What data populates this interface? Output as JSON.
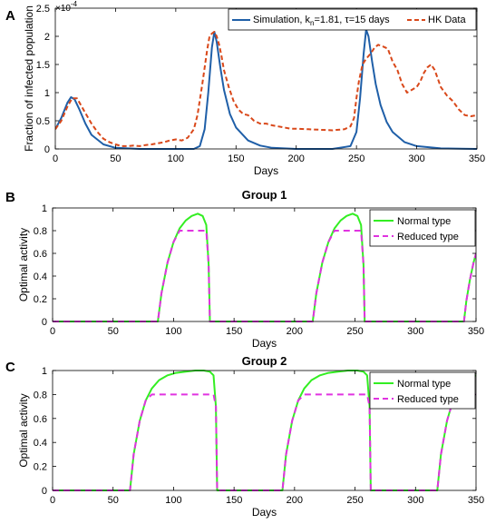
{
  "chart_data": [
    {
      "panel": "A",
      "type": "line",
      "title": "",
      "xlabel": "Days",
      "ylabel": "Fraction of infected population",
      "y_exponent_label": "×10",
      "y_exponent_power": "-4",
      "xlim": [
        0,
        350
      ],
      "ylim": [
        0,
        2.5
      ],
      "xticks": [
        "0",
        "50",
        "100",
        "150",
        "200",
        "250",
        "300",
        "350"
      ],
      "yticks": [
        "0",
        "0.5",
        "1",
        "1.5",
        "2",
        "2.5"
      ],
      "legend": {
        "position": "top-right",
        "sim_prefix": "Simulation, k",
        "sim_sub": "n",
        "sim_suffix": "=1.81, τ=15 days",
        "data_label": "HK Data"
      },
      "series": [
        {
          "name": "Simulation, kn=1.81, τ=15 days",
          "color": "#1f5fa8",
          "style": "solid",
          "x": [
            0,
            5,
            10,
            13,
            16,
            20,
            25,
            30,
            40,
            50,
            70,
            100,
            115,
            120,
            124,
            127,
            130,
            132,
            134,
            137,
            140,
            145,
            150,
            160,
            170,
            180,
            200,
            230,
            245,
            250,
            253,
            256,
            258,
            260,
            263,
            266,
            270,
            275,
            280,
            290,
            300,
            320,
            350
          ],
          "y": [
            0.35,
            0.55,
            0.82,
            0.92,
            0.88,
            0.7,
            0.45,
            0.25,
            0.08,
            0.02,
            0.0,
            0.0,
            0.0,
            0.05,
            0.35,
            1.0,
            1.8,
            2.08,
            1.9,
            1.45,
            1.05,
            0.62,
            0.38,
            0.15,
            0.06,
            0.02,
            0.0,
            0.0,
            0.05,
            0.3,
            0.9,
            1.7,
            2.12,
            2.0,
            1.55,
            1.15,
            0.78,
            0.48,
            0.3,
            0.12,
            0.05,
            0.01,
            0.0
          ]
        },
        {
          "name": "HK Data",
          "color": "#d9481a",
          "style": "dashed",
          "x": [
            0,
            5,
            10,
            14,
            18,
            22,
            26,
            30,
            35,
            40,
            45,
            50,
            55,
            60,
            65,
            70,
            75,
            80,
            85,
            90,
            95,
            100,
            105,
            110,
            115,
            118,
            122,
            126,
            128,
            130,
            132,
            134,
            136,
            138,
            140,
            144,
            148,
            152,
            156,
            160,
            165,
            170,
            175,
            180,
            185,
            190,
            195,
            200,
            210,
            220,
            230,
            235,
            240,
            245,
            248,
            250,
            252,
            255,
            258,
            262,
            265,
            268,
            272,
            276,
            280,
            284,
            288,
            292,
            296,
            300,
            303,
            306,
            309,
            312,
            315,
            320,
            325,
            330,
            335,
            340,
            345,
            350
          ],
          "y": [
            0.35,
            0.5,
            0.75,
            0.9,
            0.9,
            0.75,
            0.6,
            0.45,
            0.3,
            0.18,
            0.12,
            0.08,
            0.05,
            0.05,
            0.06,
            0.05,
            0.07,
            0.08,
            0.1,
            0.12,
            0.15,
            0.17,
            0.15,
            0.2,
            0.35,
            0.6,
            1.15,
            1.75,
            2.0,
            2.05,
            2.08,
            2.0,
            1.85,
            1.65,
            1.4,
            1.1,
            0.85,
            0.7,
            0.62,
            0.6,
            0.5,
            0.45,
            0.45,
            0.42,
            0.4,
            0.38,
            0.36,
            0.36,
            0.35,
            0.34,
            0.33,
            0.34,
            0.35,
            0.4,
            0.55,
            0.9,
            1.2,
            1.5,
            1.6,
            1.7,
            1.8,
            1.85,
            1.82,
            1.78,
            1.55,
            1.4,
            1.15,
            1.0,
            1.05,
            1.1,
            1.2,
            1.35,
            1.45,
            1.5,
            1.4,
            1.1,
            0.95,
            0.85,
            0.7,
            0.6,
            0.58,
            0.6
          ]
        }
      ]
    },
    {
      "panel": "B",
      "type": "line",
      "title": "Group 1",
      "xlabel": "Days",
      "ylabel": "Optimal activity",
      "xlim": [
        0,
        350
      ],
      "ylim": [
        0,
        1
      ],
      "xticks": [
        "0",
        "50",
        "100",
        "150",
        "200",
        "250",
        "300",
        "350"
      ],
      "yticks": [
        "0",
        "0.2",
        "0.4",
        "0.6",
        "0.8",
        "1"
      ],
      "legend": {
        "position": "top-right",
        "normal_label": "Normal type",
        "reduced_label": "Reduced type"
      },
      "series": [
        {
          "name": "Normal type",
          "color": "#33ee22",
          "style": "solid",
          "x": [
            0,
            87,
            90,
            95,
            100,
            105,
            110,
            115,
            120,
            124,
            127,
            129,
            130,
            215,
            218,
            223,
            228,
            233,
            238,
            243,
            248,
            252,
            255,
            257,
            258,
            340,
            342,
            345,
            348,
            350
          ],
          "y": [
            0,
            0,
            0.25,
            0.52,
            0.7,
            0.82,
            0.89,
            0.93,
            0.95,
            0.93,
            0.85,
            0.5,
            0,
            0,
            0.25,
            0.52,
            0.7,
            0.82,
            0.89,
            0.93,
            0.95,
            0.93,
            0.85,
            0.5,
            0,
            0,
            0.18,
            0.37,
            0.52,
            0.6
          ]
        },
        {
          "name": "Reduced type",
          "color": "#e033e0",
          "style": "dashed",
          "x": [
            0,
            87,
            90,
            95,
            100,
            105,
            110,
            115,
            120,
            124,
            127,
            129,
            130,
            215,
            218,
            223,
            228,
            233,
            238,
            243,
            248,
            252,
            255,
            257,
            258,
            340,
            342,
            345,
            348,
            350
          ],
          "y": [
            0,
            0,
            0.25,
            0.52,
            0.7,
            0.8,
            0.8,
            0.8,
            0.8,
            0.8,
            0.8,
            0.5,
            0,
            0,
            0.25,
            0.52,
            0.7,
            0.8,
            0.8,
            0.8,
            0.8,
            0.8,
            0.8,
            0.5,
            0,
            0,
            0.18,
            0.37,
            0.52,
            0.6
          ]
        }
      ]
    },
    {
      "panel": "C",
      "type": "line",
      "title": "Group 2",
      "xlabel": "Days",
      "ylabel": "Optimal activity",
      "xlim": [
        0,
        350
      ],
      "ylim": [
        0,
        1
      ],
      "xticks": [
        "0",
        "50",
        "100",
        "150",
        "200",
        "250",
        "300",
        "350"
      ],
      "yticks": [
        "0",
        "0.2",
        "0.4",
        "0.6",
        "0.8",
        "1"
      ],
      "legend": {
        "position": "top-right",
        "normal_label": "Normal type",
        "reduced_label": "Reduced type"
      },
      "series": [
        {
          "name": "Normal type",
          "color": "#33ee22",
          "style": "solid",
          "x": [
            0,
            64,
            67,
            72,
            77,
            82,
            88,
            95,
            102,
            110,
            118,
            125,
            130,
            133,
            135,
            136,
            190,
            193,
            198,
            203,
            208,
            214,
            221,
            228,
            236,
            244,
            252,
            257,
            260,
            262,
            263,
            318,
            321,
            326,
            331,
            336,
            342,
            350
          ],
          "y": [
            0,
            0,
            0.3,
            0.58,
            0.75,
            0.85,
            0.92,
            0.96,
            0.98,
            0.99,
            1.0,
            1.0,
            0.99,
            0.96,
            0.7,
            0,
            0,
            0.3,
            0.58,
            0.75,
            0.85,
            0.92,
            0.96,
            0.98,
            0.99,
            1.0,
            1.0,
            0.99,
            0.96,
            0.7,
            0,
            0,
            0.3,
            0.58,
            0.75,
            0.85,
            0.92,
            0.96
          ]
        },
        {
          "name": "Reduced type",
          "color": "#e033e0",
          "style": "dashed",
          "x": [
            0,
            64,
            67,
            72,
            77,
            82,
            88,
            95,
            102,
            110,
            118,
            125,
            130,
            133,
            135,
            136,
            190,
            193,
            198,
            203,
            208,
            214,
            221,
            228,
            236,
            244,
            252,
            257,
            260,
            262,
            263,
            318,
            321,
            326,
            331,
            336,
            342,
            350
          ],
          "y": [
            0,
            0,
            0.3,
            0.58,
            0.75,
            0.8,
            0.8,
            0.8,
            0.8,
            0.8,
            0.8,
            0.8,
            0.8,
            0.8,
            0.7,
            0,
            0,
            0.3,
            0.58,
            0.75,
            0.8,
            0.8,
            0.8,
            0.8,
            0.8,
            0.8,
            0.8,
            0.8,
            0.8,
            0.7,
            0,
            0,
            0.3,
            0.58,
            0.75,
            0.8,
            0.8,
            0.8
          ]
        }
      ]
    }
  ]
}
